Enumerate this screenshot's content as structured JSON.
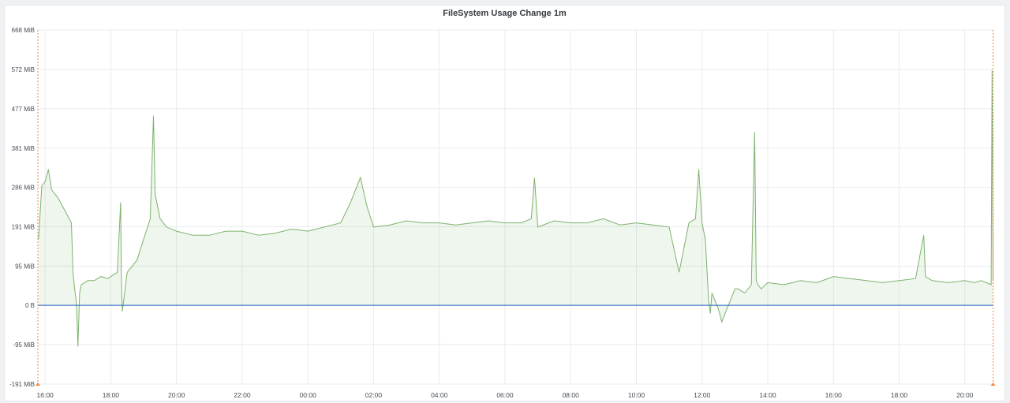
{
  "panel": {
    "title": "FileSystem Usage Change 1m"
  },
  "colors": {
    "series": "#7eb26d",
    "fill": "rgba(126,178,109,0.12)",
    "zero_line": "#1f60c4",
    "grid": "#e9ebee",
    "annotation": "#f2843b"
  },
  "chart_data": {
    "type": "area",
    "title": "FileSystem Usage Change 1m",
    "xlabel": "",
    "ylabel": "",
    "ylim": [
      -191,
      668
    ],
    "y_unit": "MiB",
    "y_tick_labels": [
      "668 MiB",
      "572 MiB",
      "477 MiB",
      "381 MiB",
      "286 MiB",
      "191 MiB",
      "95 MiB",
      "0 B",
      "-95 MiB",
      "-191 MiB"
    ],
    "y_tick_values": [
      668,
      572,
      477,
      381,
      286,
      191,
      95,
      0,
      -95,
      -191
    ],
    "x_unit": "hours",
    "xlim": [
      15.78,
      44.87
    ],
    "x_tick_labels": [
      "16:00",
      "18:00",
      "20:00",
      "22:00",
      "00:00",
      "02:00",
      "04:00",
      "06:00",
      "08:00",
      "10:00",
      "12:00",
      "14:00",
      "16:00",
      "18:00",
      "20:00"
    ],
    "x_tick_values": [
      16,
      18,
      20,
      22,
      24,
      26,
      28,
      30,
      32,
      34,
      36,
      38,
      40,
      42,
      44
    ],
    "grid": true,
    "legend": "none",
    "series": [
      {
        "x": [
          15.8,
          15.9,
          16.0,
          16.1,
          16.2,
          16.4,
          16.6,
          16.8,
          16.85,
          16.9,
          16.95,
          17.0,
          17.05,
          17.1,
          17.3,
          17.5,
          17.7,
          17.9,
          18.0,
          18.2,
          18.3,
          18.32,
          18.35,
          18.5,
          18.8,
          19.0,
          19.2,
          19.3,
          19.35,
          19.4,
          19.45,
          19.5,
          19.7,
          20.0,
          20.5,
          21.0,
          21.5,
          22.0,
          22.5,
          23.0,
          23.5,
          24.0,
          24.5,
          25.0,
          25.3,
          25.5,
          25.6,
          25.8,
          26.0,
          26.5,
          27.0,
          27.5,
          28.0,
          28.5,
          29.0,
          29.5,
          30.0,
          30.5,
          30.8,
          30.9,
          31.0,
          31.5,
          32.0,
          32.5,
          33.0,
          33.5,
          34.0,
          34.5,
          35.0,
          35.3,
          35.6,
          35.8,
          35.9,
          36.0,
          36.1,
          36.2,
          36.25,
          36.3,
          36.5,
          36.6,
          36.8,
          37.0,
          37.1,
          37.3,
          37.5,
          37.6,
          37.65,
          37.7,
          37.8,
          38.0,
          38.5,
          39.0,
          39.5,
          40.0,
          40.5,
          41.0,
          41.5,
          42.0,
          42.5,
          42.75,
          42.8,
          43.0,
          43.5,
          44.0,
          44.3,
          44.5,
          44.8,
          44.83,
          44.86
        ],
        "values": [
          160,
          290,
          300,
          330,
          280,
          260,
          230,
          200,
          80,
          40,
          10,
          -100,
          30,
          50,
          60,
          60,
          70,
          65,
          70,
          80,
          250,
          80,
          -15,
          80,
          110,
          160,
          210,
          460,
          270,
          250,
          230,
          210,
          190,
          180,
          170,
          170,
          180,
          180,
          170,
          175,
          185,
          180,
          190,
          200,
          250,
          290,
          310,
          240,
          190,
          195,
          205,
          200,
          200,
          195,
          200,
          205,
          200,
          200,
          210,
          310,
          190,
          205,
          200,
          200,
          210,
          195,
          200,
          195,
          190,
          80,
          200,
          210,
          330,
          200,
          160,
          10,
          -20,
          30,
          -10,
          -40,
          0,
          40,
          40,
          30,
          50,
          420,
          60,
          50,
          40,
          55,
          50,
          60,
          55,
          70,
          65,
          60,
          55,
          60,
          65,
          170,
          70,
          60,
          55,
          60,
          55,
          60,
          50,
          570,
          60
        ]
      }
    ],
    "annotations": [
      {
        "x": 15.78
      },
      {
        "x": 44.86
      }
    ]
  }
}
